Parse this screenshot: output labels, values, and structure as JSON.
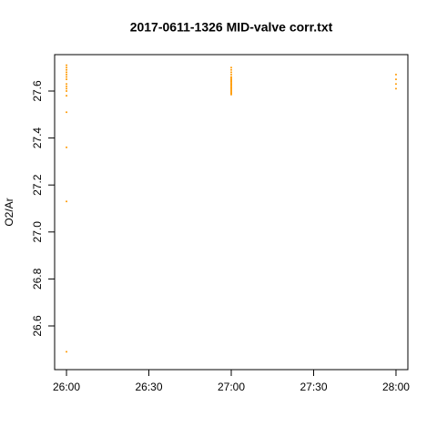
{
  "chart_data": {
    "type": "scatter",
    "title": "2017-0611-1326 MID-valve corr.txt",
    "y_label": "O2/Ar",
    "x": [
      26,
      26,
      26,
      26,
      26,
      26,
      26,
      26,
      26,
      26,
      26,
      26,
      26,
      26,
      26,
      26,
      27,
      27,
      27,
      27,
      27,
      27,
      27,
      27,
      27,
      27,
      27,
      27,
      27,
      27,
      27,
      27,
      27,
      27,
      27,
      27,
      28,
      28,
      28,
      28
    ],
    "values": [
      27.71,
      27.7,
      27.69,
      27.68,
      27.67,
      27.66,
      27.65,
      27.63,
      27.62,
      27.61,
      27.6,
      27.58,
      27.51,
      27.36,
      27.13,
      26.49,
      27.7,
      27.69,
      27.68,
      27.67,
      27.66,
      27.655,
      27.65,
      27.645,
      27.64,
      27.635,
      27.63,
      27.625,
      27.62,
      27.615,
      27.61,
      27.605,
      27.6,
      27.595,
      27.59,
      27.585,
      27.67,
      27.65,
      27.63,
      27.61
    ],
    "color": "#ff9900",
    "xlim": [
      25.928,
      28.072
    ],
    "xticks": [
      {
        "value": 26,
        "label": "26:00"
      },
      {
        "value": 26.5,
        "label": "26:30"
      },
      {
        "value": 27,
        "label": "27:00"
      },
      {
        "value": 27.5,
        "label": "27:30"
      },
      {
        "value": 28,
        "label": "28:00"
      }
    ],
    "ylim": [
      26.414,
      27.755
    ],
    "yticks": [
      26.6,
      26.8,
      {
        "value": 27,
        "label": "27.0"
      },
      27.2,
      27.4,
      27.6
    ]
  }
}
